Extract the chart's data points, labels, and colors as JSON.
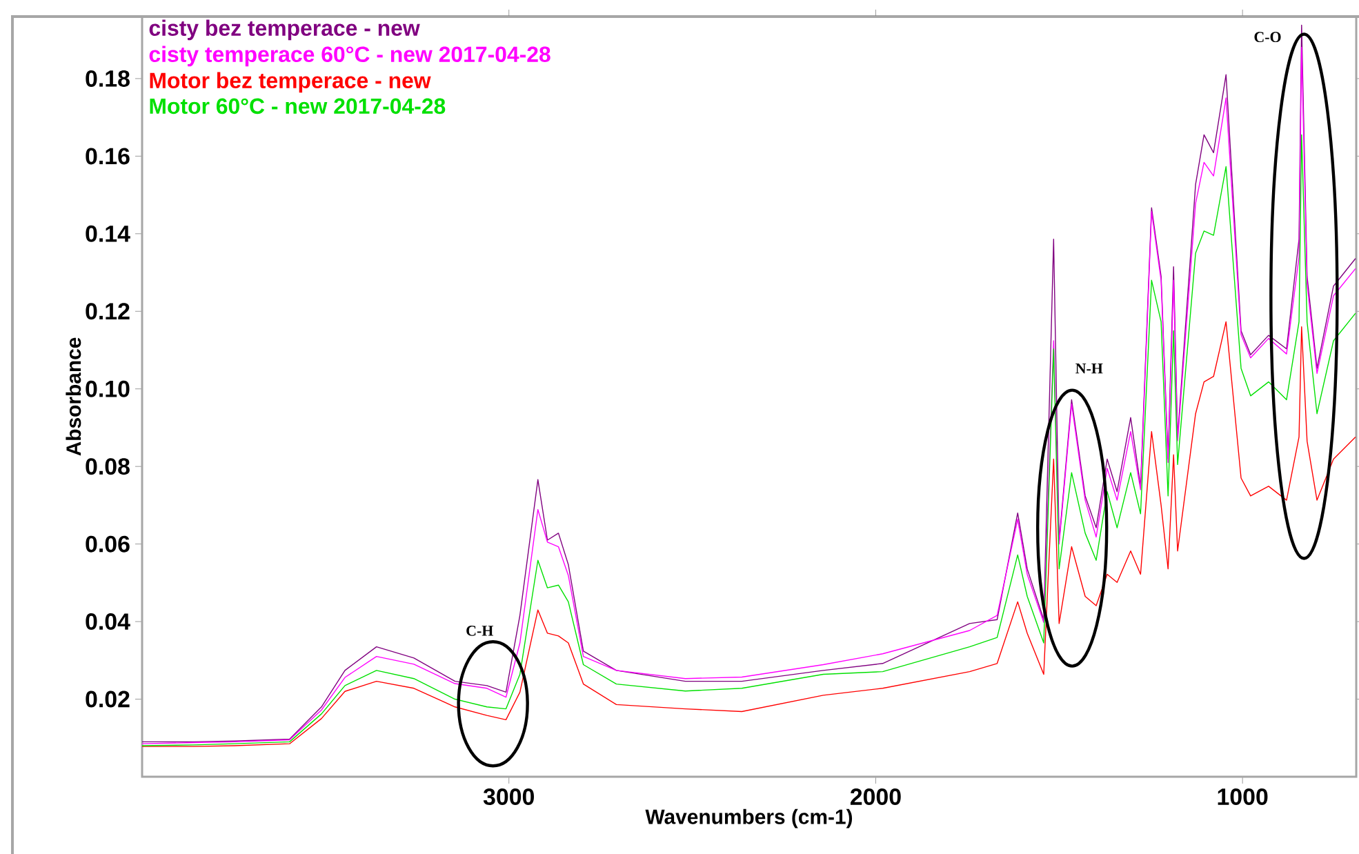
{
  "chart_data": {
    "type": "line",
    "xlabel": "Wavenumbers (cm-1)",
    "ylabel": "Absorbance",
    "xlim": [
      4000,
      690
    ],
    "ylim": [
      0,
      0.196
    ],
    "xticks": [
      3000,
      2000,
      1000
    ],
    "yticks": [
      0.02,
      0.04,
      0.06,
      0.08,
      {
        "value": 0.1,
        "label": "0.10"
      },
      0.12,
      0.14,
      0.16,
      0.18
    ],
    "legend": "top left",
    "marker": "none",
    "line_style": "solid",
    "annotations": [
      "C-H",
      "N-H",
      "C-O"
    ],
    "x": [
      4000,
      3861,
      3748,
      3598,
      3511,
      3447,
      3361,
      3259,
      3147,
      3060,
      3008,
      2970,
      2921,
      2895,
      2865,
      2838,
      2797,
      2707,
      2519,
      2365,
      2143,
      1981,
      1744,
      1669,
      1613,
      1587,
      1542,
      1515,
      1500,
      1466,
      1429,
      1399,
      1369,
      1342,
      1305,
      1278,
      1248,
      1222,
      1203,
      1188,
      1177,
      1128,
      1105,
      1079,
      1045,
      1004,
      978,
      929,
      880,
      846,
      839,
      824,
      797,
      752,
      692
    ],
    "series": [
      {
        "name": "cisty bez temperace - new",
        "color": "#800080",
        "values": [
          0.009,
          0.009,
          0.0092,
          0.0097,
          0.018,
          0.0274,
          0.0335,
          0.0306,
          0.0246,
          0.0235,
          0.0218,
          0.0416,
          0.0766,
          0.061,
          0.0628,
          0.0547,
          0.0324,
          0.0274,
          0.0246,
          0.0246,
          0.0274,
          0.0292,
          0.0395,
          0.0405,
          0.068,
          0.0536,
          0.0405,
          0.1386,
          0.0607,
          0.0972,
          0.0724,
          0.0642,
          0.0819,
          0.0735,
          0.0926,
          0.0749,
          0.1467,
          0.129,
          0.082,
          0.1315,
          0.0876,
          0.1527,
          0.1655,
          0.1609,
          0.181,
          0.115,
          0.1088,
          0.1138,
          0.1103,
          0.1386,
          0.1938,
          0.129,
          0.1053,
          0.1265,
          0.1336
        ]
      },
      {
        "name": "cisty temperace 60°C - new 2017-04-28",
        "color": "#ff00ff",
        "values": [
          0.0085,
          0.0088,
          0.009,
          0.0095,
          0.0172,
          0.0256,
          0.031,
          0.029,
          0.024,
          0.0228,
          0.0205,
          0.0345,
          0.0689,
          0.0605,
          0.0593,
          0.0519,
          0.031,
          0.0274,
          0.0253,
          0.0257,
          0.0289,
          0.0317,
          0.0377,
          0.0416,
          0.0664,
          0.0522,
          0.0398,
          0.1124,
          0.06,
          0.0961,
          0.0713,
          0.0618,
          0.0795,
          0.0713,
          0.089,
          0.074,
          0.1457,
          0.128,
          0.081,
          0.128,
          0.0866,
          0.1478,
          0.1584,
          0.1549,
          0.175,
          0.114,
          0.108,
          0.113,
          0.109,
          0.134,
          0.1881,
          0.127,
          0.104,
          0.124,
          0.131
        ]
      },
      {
        "name": "Motor bez temperace - new",
        "color": "#ff0000",
        "values": [
          0.0078,
          0.0078,
          0.008,
          0.0085,
          0.015,
          0.022,
          0.0246,
          0.0228,
          0.018,
          0.0158,
          0.0147,
          0.0218,
          0.043,
          0.037,
          0.0363,
          0.0345,
          0.0239,
          0.0186,
          0.0175,
          0.0168,
          0.021,
          0.0228,
          0.0271,
          0.0292,
          0.0451,
          0.037,
          0.0264,
          0.0819,
          0.0395,
          0.0593,
          0.0465,
          0.0441,
          0.0522,
          0.0501,
          0.0582,
          0.0522,
          0.089,
          0.07,
          0.0536,
          0.083,
          0.0582,
          0.0936,
          0.1018,
          0.1032,
          0.1173,
          0.077,
          0.0724,
          0.0749,
          0.0713,
          0.0876,
          0.116,
          0.0865,
          0.0713,
          0.0819,
          0.0876
        ]
      },
      {
        "name": "Motor 60°C - new 2017-04-28",
        "color": "#00e000",
        "values": [
          0.008,
          0.0082,
          0.0085,
          0.009,
          0.0162,
          0.0235,
          0.0274,
          0.0253,
          0.02,
          0.018,
          0.0175,
          0.0264,
          0.0558,
          0.0487,
          0.0494,
          0.0451,
          0.0289,
          0.0239,
          0.0221,
          0.0228,
          0.0264,
          0.0271,
          0.0335,
          0.0359,
          0.0572,
          0.0465,
          0.0345,
          0.1103,
          0.0536,
          0.0784,
          0.0628,
          0.0558,
          0.0735,
          0.0642,
          0.0784,
          0.0678,
          0.128,
          0.1173,
          0.0724,
          0.115,
          0.0805,
          0.135,
          0.1407,
          0.1396,
          0.1573,
          0.1053,
          0.0982,
          0.1018,
          0.0972,
          0.1173,
          0.1655,
          0.1173,
          0.0936,
          0.1124,
          0.1195
        ]
      }
    ]
  }
}
